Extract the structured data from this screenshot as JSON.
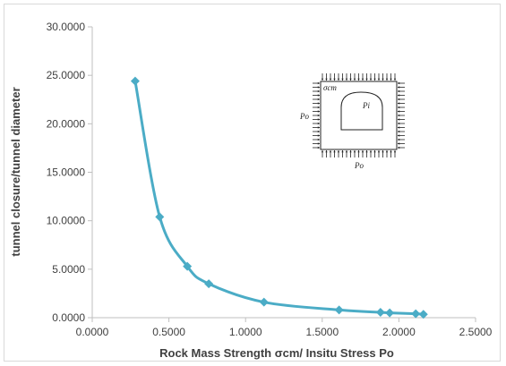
{
  "colors": {
    "series": "#4bacc6",
    "axis": "#bfbfbf",
    "text": "#404040",
    "inset_line": "#222222"
  },
  "chart_data": {
    "type": "scatter",
    "title": "",
    "xlabel": "Rock Mass Strength σcm/ Insitu Stress Po",
    "ylabel": "tunnel closure/tunnel diameter",
    "xlim": [
      0,
      2.5
    ],
    "ylim": [
      0,
      30
    ],
    "x_ticks": [
      0,
      0.5,
      1.0,
      1.5,
      2.0,
      2.5
    ],
    "y_ticks": [
      0,
      5,
      10,
      15,
      20,
      25,
      30
    ],
    "x_tick_labels": [
      "0.0000",
      "0.5000",
      "1.0000",
      "1.5000",
      "2.0000",
      "2.5000"
    ],
    "y_tick_labels": [
      "0.0000",
      "5.0000",
      "10.0000",
      "15.0000",
      "20.0000",
      "25.0000",
      "30.0000"
    ],
    "grid": false,
    "legend": "none",
    "marker": "diamond",
    "line": "smooth",
    "series": [
      {
        "x": [
          0.28,
          0.44,
          0.62,
          0.76,
          1.12,
          1.61,
          1.88,
          1.94,
          2.11,
          2.16
        ],
        "y": [
          24.4,
          10.4,
          5.3,
          3.5,
          1.6,
          0.8,
          0.55,
          0.5,
          0.4,
          0.35
        ]
      }
    ]
  },
  "inset": {
    "sigma_label": "σcm",
    "pi_label": "Pi",
    "po_left_label": "Po",
    "po_bottom_label": "Po"
  }
}
